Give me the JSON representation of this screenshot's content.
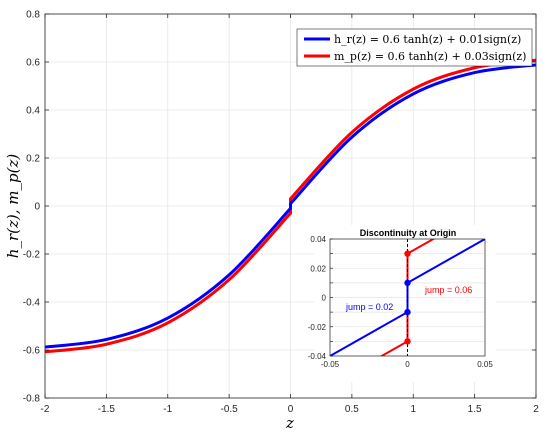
{
  "colors": {
    "hr": "#0000ff",
    "mp": "#ff0000",
    "grid": "#e6e6e6",
    "axis": "#262626",
    "dashed": "#000000"
  },
  "chart_data": [
    {
      "type": "line",
      "xlabel": "z",
      "ylabel": "h_r(z),  m_p(z)",
      "xlim": [
        -2,
        2
      ],
      "ylim": [
        -0.8,
        0.8
      ],
      "x_ticks": [
        -2,
        -1.5,
        -1,
        -0.5,
        0,
        0.5,
        1,
        1.5,
        2
      ],
      "x_tick_labels": [
        "-2",
        "-1.5",
        "-1",
        "-0.5",
        "0",
        "0.5",
        "1",
        "1.5",
        "2"
      ],
      "y_ticks": [
        -0.8,
        -0.6,
        -0.4,
        -0.2,
        0,
        0.2,
        0.4,
        0.6,
        0.8
      ],
      "y_tick_labels": [
        "-0.8",
        "-0.6",
        "-0.4",
        "-0.2",
        "0",
        "0.2",
        "0.4",
        "0.6",
        "0.8"
      ],
      "grid": true,
      "legend_position": "top-right",
      "series": [
        {
          "name": "h_r(z) = 0.6 tanh(z) + 0.01sign(z)",
          "color_key": "hr",
          "x": [
            -2,
            -1.5,
            -1,
            -0.5,
            -0.0001,
            0.0001,
            0.5,
            1,
            1.5,
            2
          ],
          "values": [
            -0.588,
            -0.556,
            -0.467,
            -0.287,
            -0.01,
            0.01,
            0.287,
            0.467,
            0.556,
            0.588
          ]
        },
        {
          "name": "m_p(z) = 0.6 tanh(z) + 0.03sign(z)",
          "color_key": "mp",
          "x": [
            -2,
            -1.5,
            -1,
            -0.5,
            -0.0001,
            0.0001,
            0.5,
            1,
            1.5,
            2
          ],
          "values": [
            -0.608,
            -0.576,
            -0.487,
            -0.307,
            -0.03,
            0.03,
            0.307,
            0.487,
            0.576,
            0.608
          ]
        }
      ]
    },
    {
      "type": "line",
      "title": "Discontinuity at Origin",
      "xlim": [
        -0.05,
        0.05
      ],
      "ylim": [
        -0.04,
        0.04
      ],
      "x_ticks": [
        -0.05,
        0,
        0.05
      ],
      "x_tick_labels": [
        "-0.05",
        "0",
        "0.05"
      ],
      "y_ticks": [
        -0.04,
        -0.03,
        -0.02,
        -0.01,
        0,
        0.01,
        0.02,
        0.03,
        0.04
      ],
      "y_tick_labels": [
        "-0.04",
        "",
        "-0.02",
        "",
        "0",
        "",
        "0.02",
        "",
        "0.04"
      ],
      "grid": true,
      "jump_markers": [
        {
          "series": "hr",
          "points": [
            [
              0,
              -0.01
            ],
            [
              0,
              0.01
            ]
          ]
        },
        {
          "series": "mp",
          "points": [
            [
              0,
              -0.03
            ],
            [
              0,
              0.03
            ]
          ]
        }
      ],
      "annotations": [
        {
          "text": "jump = 0.02",
          "color_key": "hr"
        },
        {
          "text": "jump = 0.06",
          "color_key": "mp"
        }
      ]
    }
  ]
}
